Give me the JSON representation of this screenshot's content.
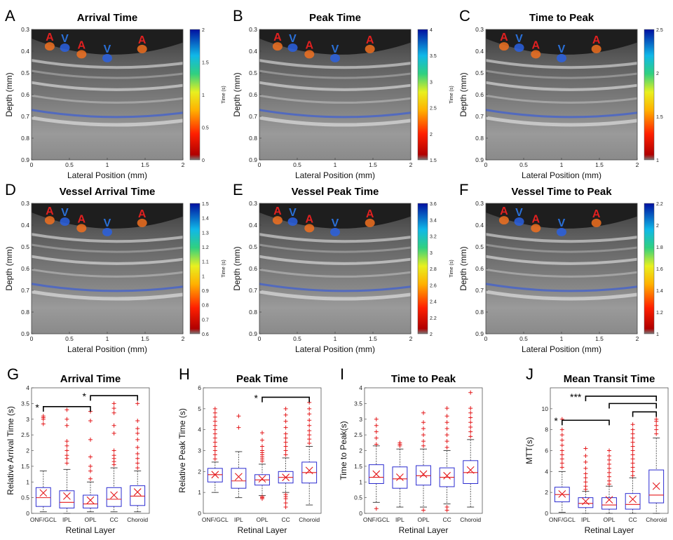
{
  "images": [
    {
      "letter": "A",
      "title": "Arrival Time",
      "colorbar": {
        "ticks": [
          "2",
          "1.5",
          "1",
          "0.5",
          "0"
        ],
        "label": "Time (s)"
      }
    },
    {
      "letter": "B",
      "title": "Peak Time",
      "colorbar": {
        "ticks": [
          "4",
          "3.5",
          "3",
          "2.5",
          "2",
          "1.5"
        ],
        "label": "Time (s)"
      }
    },
    {
      "letter": "C",
      "title": "Time to Peak",
      "colorbar": {
        "ticks": [
          "2.5",
          "2",
          "1.5",
          "1"
        ],
        "label": "Time (s)"
      }
    },
    {
      "letter": "D",
      "title": "Vessel Arrival Time",
      "colorbar": {
        "ticks": [
          "1.5",
          "1.4",
          "1.3",
          "1.2",
          "1.1",
          "1",
          "0.9",
          "0.8",
          "0.7",
          "0.6"
        ],
        "label": "Time (s)"
      }
    },
    {
      "letter": "E",
      "title": "Vessel Peak Time",
      "colorbar": {
        "ticks": [
          "3.6",
          "3.4",
          "3.2",
          "3",
          "2.8",
          "2.6",
          "2.4",
          "2.2",
          "2"
        ],
        "label": "Time (s)"
      }
    },
    {
      "letter": "F",
      "title": "Vessel Time to Peak",
      "colorbar": {
        "ticks": [
          "2.2",
          "2",
          "1.8",
          "1.6",
          "1.4",
          "1.2",
          "1"
        ],
        "label": "Time (s)"
      }
    }
  ],
  "image_axes": {
    "ylabel": "Depth (mm)",
    "xlabel": "Lateral Position (mm)",
    "yticks": [
      "0.3",
      "0.4",
      "0.5",
      "0.6",
      "0.7",
      "0.8",
      "0.9"
    ],
    "xticks": [
      "0",
      "0.5",
      "1",
      "1.5",
      "2"
    ]
  },
  "vessel_markers": {
    "artery": "A",
    "vein": "V",
    "artery_color": "#e02020",
    "vein_color": "#2a6fd6"
  },
  "colors": {
    "box": "#2b2bd0",
    "median": "#e41a1c",
    "outlier": "#e41a1c"
  },
  "chart_data": [
    {
      "letter": "G",
      "type": "box",
      "title": "Arrival Time",
      "xlabel": "Retinal Layer",
      "ylabel": "Relative Arrival Time (s)",
      "categories": [
        "ONF/GCL",
        "IPL",
        "OPL",
        "CC",
        "Choroid"
      ],
      "ylim": [
        0,
        4
      ],
      "yticks": [
        "0",
        "0.5",
        "1",
        "1.5",
        "2",
        "2.5",
        "3",
        "3.5",
        "4"
      ],
      "boxes": [
        {
          "whislo": 0.05,
          "q1": 0.22,
          "med": 0.5,
          "q3": 0.82,
          "whishi": 1.35,
          "mean": 0.65,
          "outliers": [
            2.85,
            3.0,
            3.05,
            3.1
          ]
        },
        {
          "whislo": 0.0,
          "q1": 0.17,
          "med": 0.35,
          "q3": 0.72,
          "whishi": 1.4,
          "mean": 0.55,
          "outliers": [
            1.6,
            1.75,
            1.85,
            2.0,
            2.15,
            2.3,
            2.8,
            3.0,
            3.3
          ]
        },
        {
          "whislo": 0.05,
          "q1": 0.17,
          "med": 0.3,
          "q3": 0.58,
          "whishi": 1.0,
          "mean": 0.42,
          "outliers": [
            1.1,
            1.35,
            1.5,
            1.8,
            2.35,
            2.95,
            3.25
          ]
        },
        {
          "whislo": 0.05,
          "q1": 0.22,
          "med": 0.45,
          "q3": 0.82,
          "whishi": 1.45,
          "mean": 0.58,
          "outliers": [
            1.55,
            1.65,
            1.75,
            1.85,
            2.0,
            2.55,
            2.8,
            3.2,
            3.35,
            3.5
          ]
        },
        {
          "whislo": 0.05,
          "q1": 0.25,
          "med": 0.55,
          "q3": 0.88,
          "whishi": 1.35,
          "mean": 0.68,
          "outliers": [
            1.45,
            1.6,
            1.75,
            1.9,
            2.1,
            2.35,
            2.55,
            2.7,
            2.95,
            3.5
          ]
        }
      ],
      "significance": [
        {
          "from": 0,
          "to": 2,
          "label": "*",
          "level": 3.4
        },
        {
          "from": 2,
          "to": 4,
          "label": "*",
          "level": 3.75
        }
      ]
    },
    {
      "letter": "H",
      "type": "box",
      "title": "Peak Time",
      "xlabel": "Retinal Layer",
      "ylabel": "Relative Peak Time (s)",
      "categories": [
        "ONF/GCL",
        "IPL",
        "OPL",
        "CC",
        "Choroid"
      ],
      "ylim": [
        0,
        6
      ],
      "yticks": [
        "0",
        "1",
        "2",
        "3",
        "4",
        "5",
        "6"
      ],
      "boxes": [
        {
          "whislo": 1.0,
          "q1": 1.5,
          "med": 1.85,
          "q3": 2.15,
          "whishi": 2.45,
          "mean": 1.85,
          "outliers": [
            2.6,
            2.8,
            3.0,
            3.2,
            3.4,
            3.6,
            3.8,
            4.0,
            4.2,
            4.4,
            4.6,
            4.8,
            5.0
          ]
        },
        {
          "whislo": 0.75,
          "q1": 1.2,
          "med": 1.55,
          "q3": 2.15,
          "whishi": 2.95,
          "mean": 1.75,
          "outliers": [
            4.1,
            4.65
          ]
        },
        {
          "whislo": 0.85,
          "q1": 1.35,
          "med": 1.6,
          "q3": 1.85,
          "whishi": 2.35,
          "mean": 1.65,
          "outliers": [
            0.7,
            0.75,
            0.8,
            2.5,
            2.6,
            2.7,
            2.8,
            2.9,
            3.0,
            3.2,
            3.5,
            3.85
          ]
        },
        {
          "whislo": 1.0,
          "q1": 1.45,
          "med": 1.72,
          "q3": 2.0,
          "whishi": 2.65,
          "mean": 1.72,
          "outliers": [
            0.3,
            0.5,
            0.7,
            0.8,
            0.9,
            2.8,
            3.0,
            3.2,
            3.4,
            3.6,
            3.8,
            4.1,
            4.4,
            4.7,
            5.0
          ]
        },
        {
          "whislo": 0.4,
          "q1": 1.45,
          "med": 1.95,
          "q3": 2.45,
          "whishi": 3.2,
          "mean": 2.05,
          "outliers": [
            3.35,
            3.55,
            3.75,
            3.95,
            4.2,
            4.45,
            4.75,
            5.0,
            5.3
          ]
        }
      ],
      "significance": [
        {
          "from": 2,
          "to": 4,
          "label": "*",
          "level": 5.55
        }
      ]
    },
    {
      "letter": "I",
      "type": "box",
      "title": "Time to Peak",
      "xlabel": "Retinal Layer",
      "ylabel": "Time to Peak(s)",
      "categories": [
        "ONF/GCL",
        "IPL",
        "OPL",
        "CC",
        "Choroid"
      ],
      "ylim": [
        0,
        4
      ],
      "yticks": [
        "0",
        "0.5",
        "1",
        "1.5",
        "2",
        "2.5",
        "3",
        "3.5",
        "4"
      ],
      "boxes": [
        {
          "whislo": 0.35,
          "q1": 0.95,
          "med": 1.15,
          "q3": 1.55,
          "whishi": 2.15,
          "mean": 1.25,
          "outliers": [
            0.15,
            2.2,
            2.4,
            2.6,
            2.8,
            3.0
          ]
        },
        {
          "whislo": 0.2,
          "q1": 0.8,
          "med": 1.1,
          "q3": 1.48,
          "whishi": 2.05,
          "mean": 1.15,
          "outliers": [
            2.15,
            2.2,
            2.25
          ]
        },
        {
          "whislo": 0.2,
          "q1": 0.9,
          "med": 1.2,
          "q3": 1.52,
          "whishi": 2.05,
          "mean": 1.25,
          "outliers": [
            0.1,
            2.15,
            2.3,
            2.5,
            2.7,
            2.9,
            3.2
          ]
        },
        {
          "whislo": 0.3,
          "q1": 0.85,
          "med": 1.15,
          "q3": 1.45,
          "whishi": 2.0,
          "mean": 1.2,
          "outliers": [
            0.1,
            0.2,
            2.1,
            2.3,
            2.5,
            2.7,
            2.9,
            3.1,
            3.35
          ]
        },
        {
          "whislo": 0.2,
          "q1": 0.95,
          "med": 1.3,
          "q3": 1.68,
          "whishi": 2.35,
          "mean": 1.38,
          "outliers": [
            2.45,
            2.6,
            2.75,
            2.9,
            3.05,
            3.2,
            3.35,
            3.85
          ]
        }
      ],
      "significance": []
    },
    {
      "letter": "J",
      "type": "box",
      "title": "Mean Transit Time",
      "xlabel": "Retinal Layer",
      "ylabel": "MTT(s)",
      "categories": [
        "ONF/GCL",
        "IPL",
        "OPL",
        "CC",
        "Choroid"
      ],
      "ylim": [
        0,
        12
      ],
      "yticks": [
        "0",
        "2",
        "4",
        "6",
        "8",
        "10"
      ],
      "boxes": [
        {
          "whislo": 0.1,
          "q1": 1.1,
          "med": 1.8,
          "q3": 2.5,
          "whishi": 4.0,
          "mean": 1.85,
          "outliers": [
            4.4,
            4.8,
            5.2,
            5.6,
            6.0,
            6.5,
            7.0,
            7.5,
            8.0,
            9.0
          ]
        },
        {
          "whislo": 0.0,
          "q1": 0.55,
          "med": 0.95,
          "q3": 1.5,
          "whishi": 2.1,
          "mean": 1.15,
          "outliers": [
            2.3,
            2.6,
            3.0,
            3.4,
            3.8,
            4.3,
            4.9,
            5.5,
            6.2
          ]
        },
        {
          "whislo": 0.0,
          "q1": 0.4,
          "med": 0.8,
          "q3": 1.5,
          "whishi": 2.6,
          "mean": 1.3,
          "outliers": [
            2.8,
            3.1,
            3.5,
            3.9,
            4.3,
            4.7,
            5.1,
            5.5,
            6.0
          ]
        },
        {
          "whislo": 0.0,
          "q1": 0.4,
          "med": 0.85,
          "q3": 1.9,
          "whishi": 3.4,
          "mean": 1.35,
          "outliers": [
            3.6,
            4.0,
            4.4,
            4.8,
            5.2,
            5.6,
            6.0,
            6.4,
            6.8,
            7.2,
            7.6,
            8.0,
            8.5
          ]
        },
        {
          "whislo": 0.0,
          "q1": 1.0,
          "med": 1.75,
          "q3": 4.15,
          "whishi": 7.2,
          "mean": 2.6,
          "outliers": [
            7.6,
            8.0,
            8.4,
            8.8,
            9.0
          ]
        }
      ],
      "significance": [
        {
          "from": 0,
          "to": 2,
          "label": "*",
          "level": 8.9
        },
        {
          "from": 1,
          "to": 4,
          "label": "***",
          "level": 11.2
        },
        {
          "from": 2,
          "to": 4,
          "label": "",
          "level": 10.5
        },
        {
          "from": 3,
          "to": 4,
          "label": "",
          "level": 9.7
        }
      ]
    }
  ]
}
